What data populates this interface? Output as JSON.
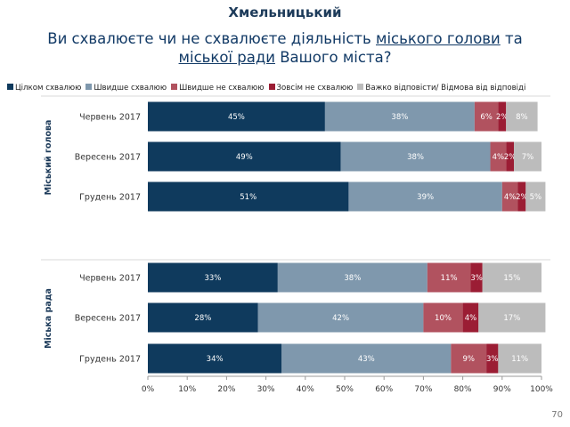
{
  "city": "Хмельницький",
  "title": {
    "part1": "Ви схвалюєте чи не схвалюєте діяльність ",
    "u1": "міського голови",
    "part2": " та",
    "u2": "міської ради",
    "part3": " Вашого міста?"
  },
  "page_number": "70",
  "colors": {
    "full_approve": "#0f3a5d",
    "rather_approve": "#7f98ad",
    "rather_disapprove": "#b1525f",
    "full_disapprove": "#9b1d34",
    "hard_to_say": "#bcbcbc"
  },
  "chart_data": {
    "type": "bar",
    "orientation": "horizontal",
    "stacked": true,
    "xlim": [
      0,
      100
    ],
    "x_ticks": [
      "0%",
      "10%",
      "20%",
      "30%",
      "40%",
      "50%",
      "60%",
      "70%",
      "80%",
      "90%",
      "100%"
    ],
    "legend_position": "top",
    "series": [
      {
        "name": "Цілком схвалюю",
        "color_key": "full_approve"
      },
      {
        "name": "Швидше схвалюю",
        "color_key": "rather_approve"
      },
      {
        "name": "Швидше не схвалюю",
        "color_key": "rather_disapprove"
      },
      {
        "name": "Зовсім не схвалюю",
        "color_key": "full_disapprove"
      },
      {
        "name": "Важко відповісти/ Відмова від відповіді",
        "color_key": "hard_to_say"
      }
    ],
    "groups": [
      {
        "label": "Міський голова",
        "rows": [
          {
            "category": "Червень 2017",
            "values": [
              45,
              38,
              6,
              2,
              8
            ]
          },
          {
            "category": "Вересень 2017",
            "values": [
              49,
              38,
              4,
              2,
              7
            ]
          },
          {
            "category": "Грудень 2017",
            "values": [
              51,
              39,
              4,
              2,
              5
            ]
          }
        ]
      },
      {
        "label": "Міська рада",
        "rows": [
          {
            "category": "Червень 2017",
            "values": [
              33,
              38,
              11,
              3,
              15
            ]
          },
          {
            "category": "Вересень 2017",
            "values": [
              28,
              42,
              10,
              4,
              17
            ]
          },
          {
            "category": "Грудень 2017",
            "values": [
              34,
              43,
              9,
              3,
              11
            ]
          }
        ]
      }
    ]
  }
}
